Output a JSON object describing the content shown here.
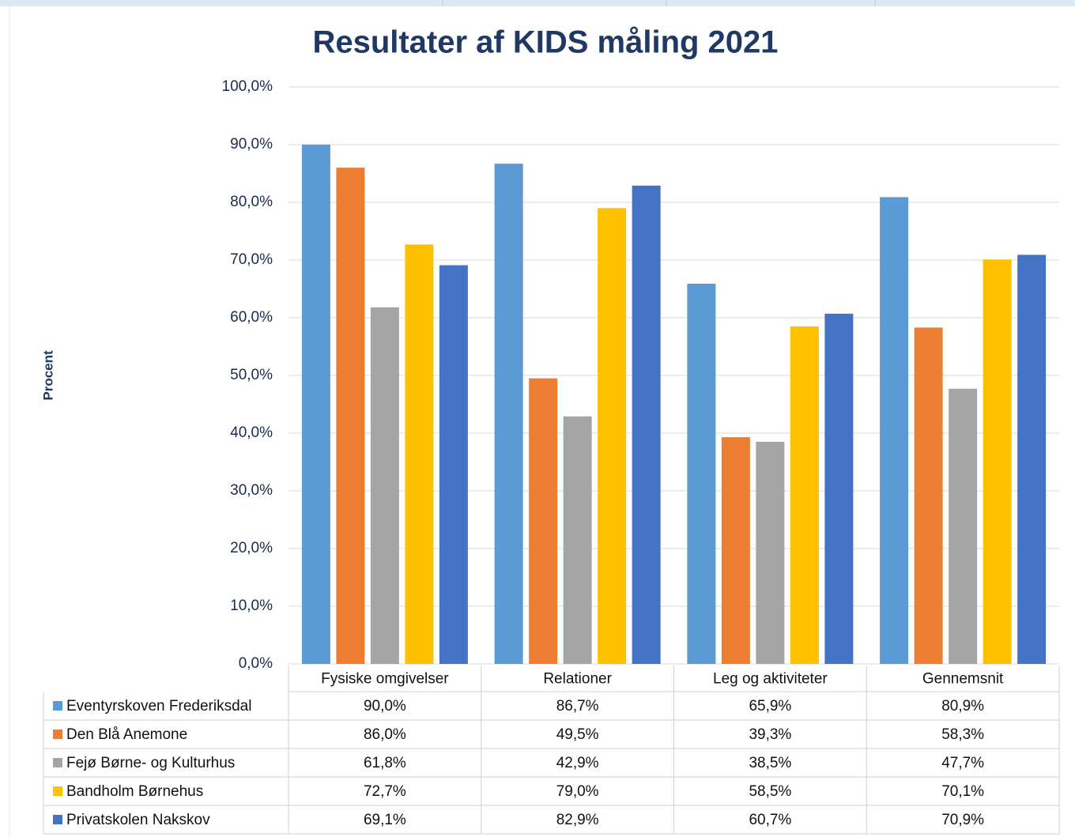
{
  "chart_data": {
    "type": "bar",
    "title": "Resultater af KIDS måling 2021",
    "y_label": "Procent",
    "categories": [
      "Fysiske omgivelser",
      "Relationer",
      "Leg og aktiviteter",
      "Gennemsnit"
    ],
    "series": [
      {
        "name": "Eventyrskoven Frederiksdal",
        "color": "#5b9bd5",
        "values": [
          90.0,
          86.7,
          65.9,
          80.9
        ],
        "value_labels": [
          "90,0%",
          "86,7%",
          "65,9%",
          "80,9%"
        ]
      },
      {
        "name": "Den Blå Anemone",
        "color": "#ed7d31",
        "values": [
          86.0,
          49.5,
          39.3,
          58.3
        ],
        "value_labels": [
          "86,0%",
          "49,5%",
          "39,3%",
          "58,3%"
        ]
      },
      {
        "name": "Fejø Børne- og Kulturhus",
        "color": "#a5a5a5",
        "values": [
          61.8,
          42.9,
          38.5,
          47.7
        ],
        "value_labels": [
          "61,8%",
          "42,9%",
          "38,5%",
          "47,7%"
        ]
      },
      {
        "name": "Bandholm Børnehus",
        "color": "#ffc000",
        "values": [
          72.7,
          79.0,
          58.5,
          70.1
        ],
        "value_labels": [
          "72,7%",
          "79,0%",
          "58,5%",
          "70,1%"
        ]
      },
      {
        "name": "Privatskolen Nakskov",
        "color": "#4472c4",
        "values": [
          69.1,
          82.9,
          60.7,
          70.9
        ],
        "value_labels": [
          "69,1%",
          "82,9%",
          "60,7%",
          "70,9%"
        ]
      }
    ],
    "ylim": [
      0,
      100
    ],
    "yticks": [
      {
        "value": 0,
        "label": "0,0%"
      },
      {
        "value": 10,
        "label": "10,0%"
      },
      {
        "value": 20,
        "label": "20,0%"
      },
      {
        "value": 30,
        "label": "30,0%"
      },
      {
        "value": 40,
        "label": "40,0%"
      },
      {
        "value": 50,
        "label": "50,0%"
      },
      {
        "value": 60,
        "label": "60,0%"
      },
      {
        "value": 70,
        "label": "70,0%"
      },
      {
        "value": 80,
        "label": "80,0%"
      },
      {
        "value": 90,
        "label": "90,0%"
      },
      {
        "value": 100,
        "label": "100,0%"
      }
    ],
    "grid": true
  }
}
